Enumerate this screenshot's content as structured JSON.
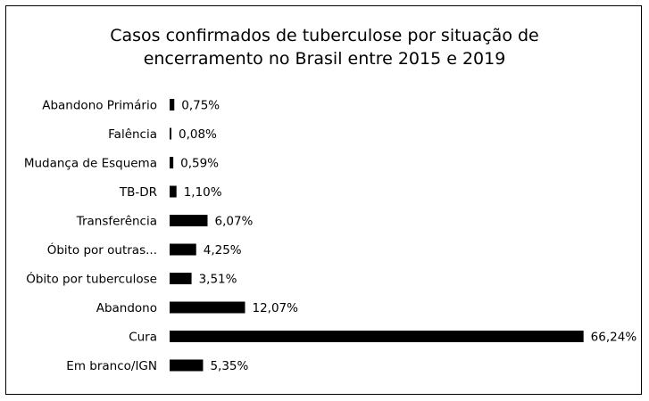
{
  "chart_data": {
    "type": "bar",
    "orientation": "horizontal",
    "title_lines": [
      "Casos confirmados de tuberculose por situação de",
      "encerramento no Brasil entre 2015 e 2019"
    ],
    "categories": [
      "Abandono Primário",
      "Falência",
      "Mudança de Esquema",
      "TB-DR",
      "Transferência",
      "Óbito por outras...",
      "Óbito por tuberculose",
      "Abandono",
      "Cura",
      "Em branco/IGN"
    ],
    "values": [
      0.75,
      0.08,
      0.59,
      1.1,
      6.07,
      4.25,
      3.51,
      12.07,
      66.24,
      5.35
    ],
    "value_labels": [
      "0,75%",
      "0,08%",
      "0,59%",
      "1,10%",
      "6,07%",
      "4,25%",
      "3,51%",
      "12,07%",
      "66,24%",
      "5,35%"
    ],
    "bar_color": "#000000",
    "grid": false,
    "legend": "none"
  }
}
